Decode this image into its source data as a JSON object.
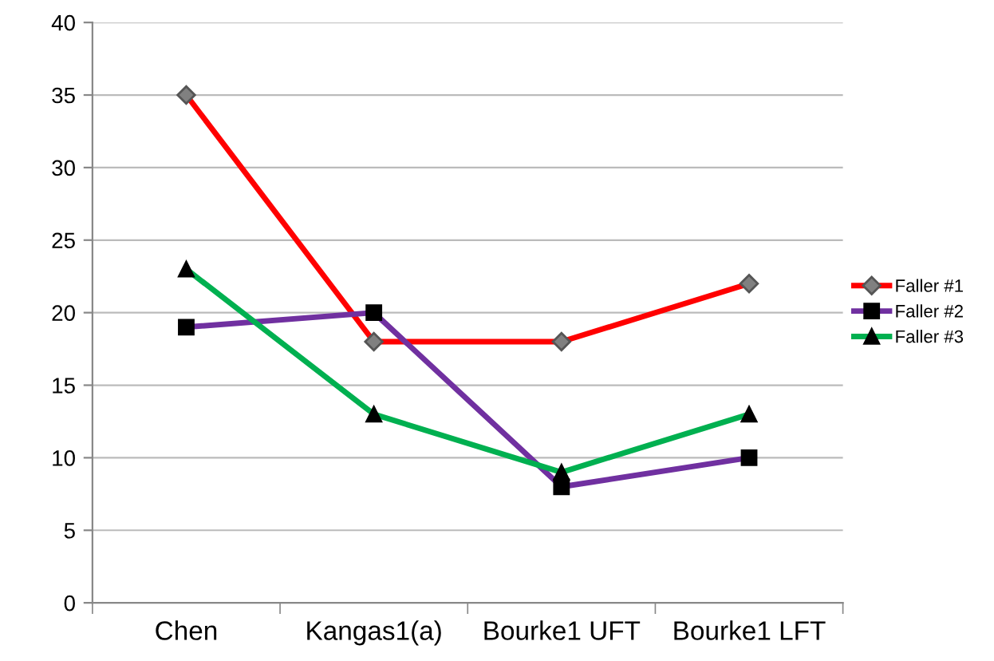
{
  "chart_data": {
    "type": "line",
    "categories": [
      "Chen",
      "Kangas1(a)",
      "Bourke1 UFT",
      "Bourke1 LFT"
    ],
    "series": [
      {
        "name": "Faller #1",
        "color": "#ff0000",
        "marker": "diamond",
        "values": [
          35,
          18,
          18,
          22
        ]
      },
      {
        "name": "Faller #2",
        "color": "#7030a0",
        "marker": "square",
        "values": [
          19,
          20,
          8,
          10
        ]
      },
      {
        "name": "Faller #3",
        "color": "#00b050",
        "marker": "triangle",
        "values": [
          23,
          13,
          9,
          13
        ]
      }
    ],
    "ylim": [
      0,
      40
    ],
    "yticks": [
      0,
      5,
      10,
      15,
      20,
      25,
      30,
      35,
      40
    ],
    "grid": "y",
    "legend": "right",
    "line_style": "solid"
  }
}
